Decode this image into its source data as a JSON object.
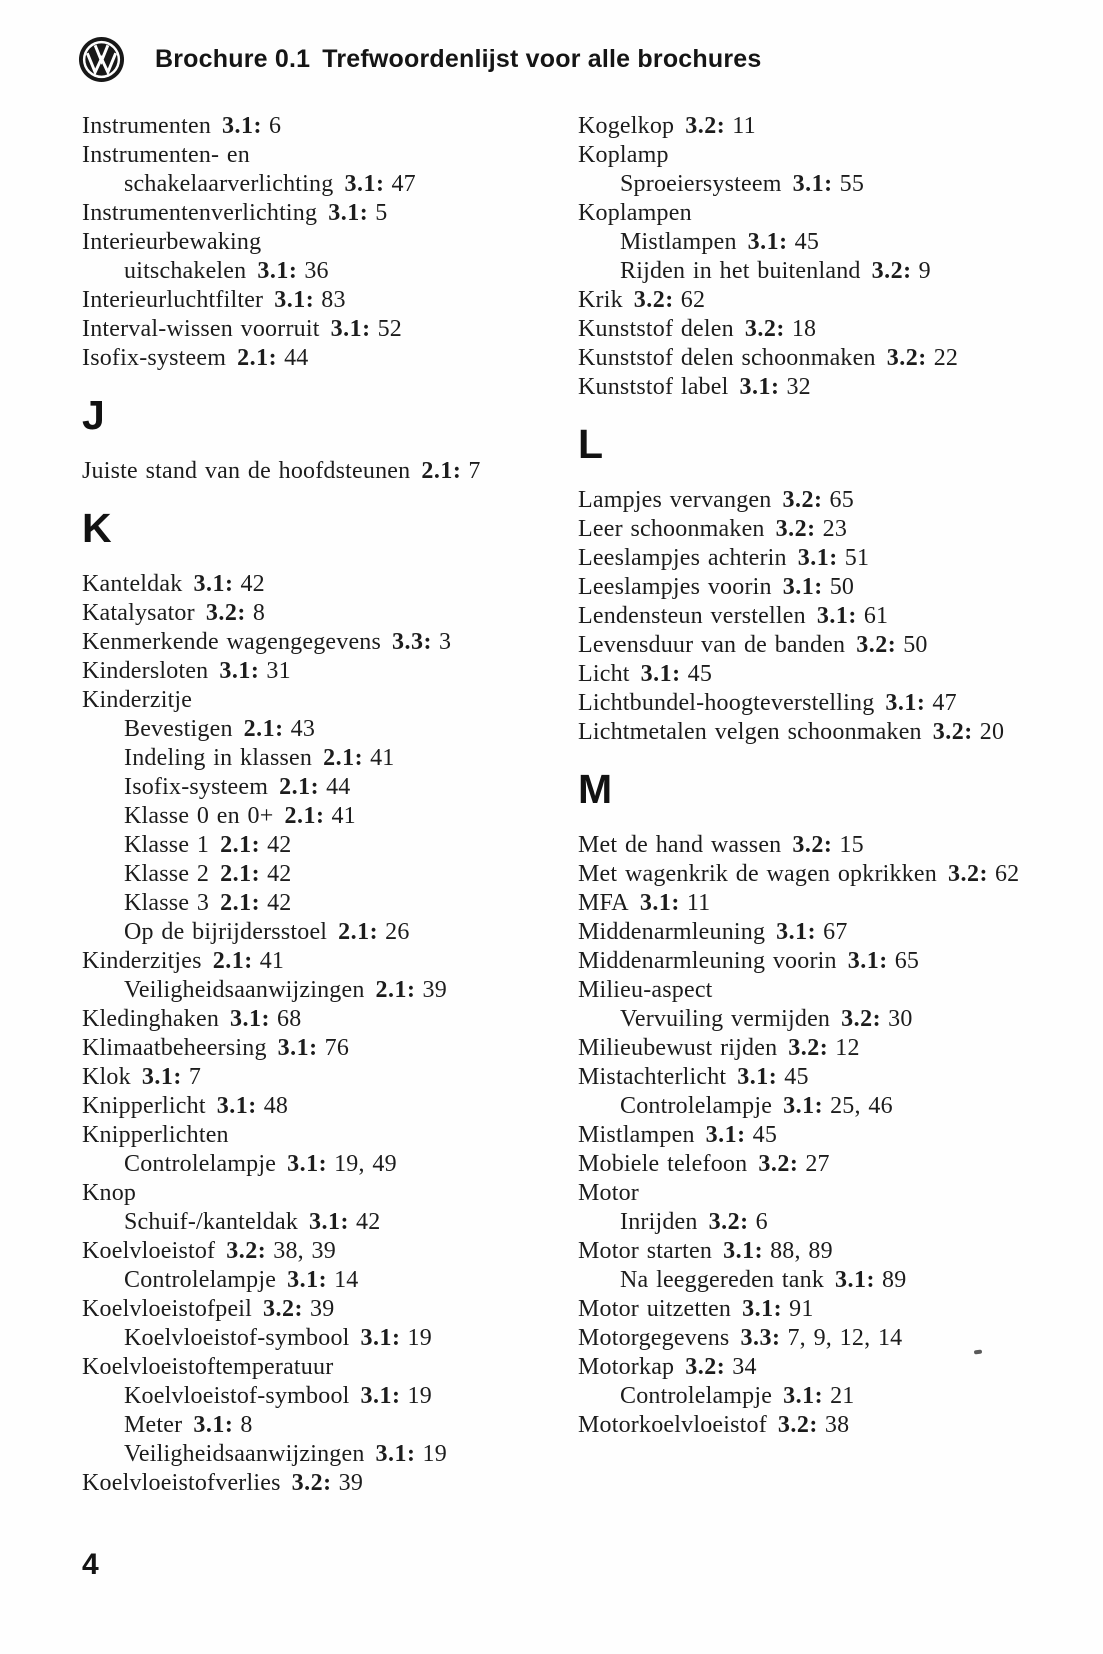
{
  "header": {
    "brochure": "Brochure 0.1",
    "title": "Trefwoordenlijst voor alle brochures",
    "logo": "vw-logo"
  },
  "footer": {
    "page_number": "4"
  },
  "columns": {
    "left": [
      {
        "label": "Instrumenten",
        "ref": "3.1:",
        "pages": "6"
      },
      {
        "label": "Instrumenten- en"
      },
      {
        "label": "schakelaarverlichting",
        "ref": "3.1:",
        "pages": "47",
        "indent": 1
      },
      {
        "label": "Instrumentenverlichting",
        "ref": "3.1:",
        "pages": "5"
      },
      {
        "label": "Interieurbewaking"
      },
      {
        "label": "uitschakelen",
        "ref": "3.1:",
        "pages": "36",
        "indent": 1
      },
      {
        "label": "Interieurluchtfilter",
        "ref": "3.1:",
        "pages": "83"
      },
      {
        "label": "Interval-wissen voorruit",
        "ref": "3.1:",
        "pages": "52"
      },
      {
        "label": "Isofix-systeem",
        "ref": "2.1:",
        "pages": "44"
      },
      {
        "type": "section",
        "label": "J"
      },
      {
        "label": "Juiste stand van de hoofdsteunen",
        "ref": "2.1:",
        "pages": "7"
      },
      {
        "type": "section",
        "label": "K"
      },
      {
        "label": "Kanteldak",
        "ref": "3.1:",
        "pages": "42"
      },
      {
        "label": "Katalysator",
        "ref": "3.2:",
        "pages": "8"
      },
      {
        "label": "Kenmerkende wagengegevens",
        "ref": "3.3:",
        "pages": "3"
      },
      {
        "label": "Kindersloten",
        "ref": "3.1:",
        "pages": "31"
      },
      {
        "label": "Kinderzitje"
      },
      {
        "label": "Bevestigen",
        "ref": "2.1:",
        "pages": "43",
        "indent": 1
      },
      {
        "label": "Indeling in klassen",
        "ref": "2.1:",
        "pages": "41",
        "indent": 1
      },
      {
        "label": "Isofix-systeem",
        "ref": "2.1:",
        "pages": "44",
        "indent": 1
      },
      {
        "label": "Klasse 0 en 0+",
        "ref": "2.1:",
        "pages": "41",
        "indent": 1
      },
      {
        "label": "Klasse 1",
        "ref": "2.1:",
        "pages": "42",
        "indent": 1
      },
      {
        "label": "Klasse 2",
        "ref": "2.1:",
        "pages": "42",
        "indent": 1
      },
      {
        "label": "Klasse 3",
        "ref": "2.1:",
        "pages": "42",
        "indent": 1
      },
      {
        "label": "Op de bijrijdersstoel",
        "ref": "2.1:",
        "pages": "26",
        "indent": 1
      },
      {
        "label": "Kinderzitjes",
        "ref": "2.1:",
        "pages": "41"
      },
      {
        "label": "Veiligheidsaanwijzingen",
        "ref": "2.1:",
        "pages": "39",
        "indent": 1
      },
      {
        "label": "Kledinghaken",
        "ref": "3.1:",
        "pages": "68"
      },
      {
        "label": "Klimaatbeheersing",
        "ref": "3.1:",
        "pages": "76"
      },
      {
        "label": "Klok",
        "ref": "3.1:",
        "pages": "7"
      },
      {
        "label": "Knipperlicht",
        "ref": "3.1:",
        "pages": "48"
      },
      {
        "label": "Knipperlichten"
      },
      {
        "label": "Controlelampje",
        "ref": "3.1:",
        "pages": "19, 49",
        "indent": 1
      },
      {
        "label": "Knop"
      },
      {
        "label": "Schuif-/kanteldak",
        "ref": "3.1:",
        "pages": "42",
        "indent": 1
      },
      {
        "label": "Koelvloeistof",
        "ref": "3.2:",
        "pages": "38, 39"
      },
      {
        "label": "Controlelampje",
        "ref": "3.1:",
        "pages": "14",
        "indent": 1
      },
      {
        "label": "Koelvloeistofpeil",
        "ref": "3.2:",
        "pages": "39"
      },
      {
        "label": "Koelvloeistof-symbool",
        "ref": "3.1:",
        "pages": "19",
        "indent": 1
      },
      {
        "label": "Koelvloeistoftemperatuur"
      },
      {
        "label": "Koelvloeistof-symbool",
        "ref": "3.1:",
        "pages": "19",
        "indent": 1
      },
      {
        "label": "Meter",
        "ref": "3.1:",
        "pages": "8",
        "indent": 1
      },
      {
        "label": "Veiligheidsaanwijzingen",
        "ref": "3.1:",
        "pages": "19",
        "indent": 1
      },
      {
        "label": "Koelvloeistofverlies",
        "ref": "3.2:",
        "pages": "39"
      }
    ],
    "right": [
      {
        "label": "Kogelkop",
        "ref": "3.2:",
        "pages": "11"
      },
      {
        "label": "Koplamp"
      },
      {
        "label": "Sproeiersysteem",
        "ref": "3.1:",
        "pages": "55",
        "indent": 1
      },
      {
        "label": "Koplampen"
      },
      {
        "label": "Mistlampen",
        "ref": "3.1:",
        "pages": "45",
        "indent": 1
      },
      {
        "label": "Rijden in het buitenland",
        "ref": "3.2:",
        "pages": "9",
        "indent": 1
      },
      {
        "label": "Krik",
        "ref": "3.2:",
        "pages": "62"
      },
      {
        "label": "Kunststof delen",
        "ref": "3.2:",
        "pages": "18"
      },
      {
        "label": "Kunststof delen schoonmaken",
        "ref": "3.2:",
        "pages": "22"
      },
      {
        "label": "Kunststof label",
        "ref": "3.1:",
        "pages": "32"
      },
      {
        "type": "section",
        "label": "L"
      },
      {
        "label": "Lampjes vervangen",
        "ref": "3.2:",
        "pages": "65"
      },
      {
        "label": "Leer schoonmaken",
        "ref": "3.2:",
        "pages": "23"
      },
      {
        "label": "Leeslampjes achterin",
        "ref": "3.1:",
        "pages": "51"
      },
      {
        "label": "Leeslampjes voorin",
        "ref": "3.1:",
        "pages": "50"
      },
      {
        "label": "Lendensteun verstellen",
        "ref": "3.1:",
        "pages": "61"
      },
      {
        "label": "Levensduur van de banden",
        "ref": "3.2:",
        "pages": "50"
      },
      {
        "label": "Licht",
        "ref": "3.1:",
        "pages": "45"
      },
      {
        "label": "Lichtbundel-hoogteverstelling",
        "ref": "3.1:",
        "pages": "47"
      },
      {
        "label": "Lichtmetalen velgen schoonmaken",
        "ref": "3.2:",
        "pages": "20"
      },
      {
        "type": "section",
        "label": "M"
      },
      {
        "label": "Met de hand wassen",
        "ref": "3.2:",
        "pages": "15"
      },
      {
        "label": "Met wagenkrik de wagen opkrikken",
        "ref": "3.2:",
        "pages": "62"
      },
      {
        "label": "MFA",
        "ref": "3.1:",
        "pages": "11"
      },
      {
        "label": "Middenarmleuning",
        "ref": "3.1:",
        "pages": "67"
      },
      {
        "label": "Middenarmleuning voorin",
        "ref": "3.1:",
        "pages": "65"
      },
      {
        "label": "Milieu-aspect"
      },
      {
        "label": "Vervuiling vermijden",
        "ref": "3.2:",
        "pages": "30",
        "indent": 1
      },
      {
        "label": "Milieubewust rijden",
        "ref": "3.2:",
        "pages": "12"
      },
      {
        "label": "Mistachterlicht",
        "ref": "3.1:",
        "pages": "45"
      },
      {
        "label": "Controlelampje",
        "ref": "3.1:",
        "pages": "25, 46",
        "indent": 1
      },
      {
        "label": "Mistlampen",
        "ref": "3.1:",
        "pages": "45"
      },
      {
        "label": "Mobiele telefoon",
        "ref": "3.2:",
        "pages": "27"
      },
      {
        "label": "Motor"
      },
      {
        "label": "Inrijden",
        "ref": "3.2:",
        "pages": "6",
        "indent": 1
      },
      {
        "label": "Motor starten",
        "ref": "3.1:",
        "pages": "88, 89"
      },
      {
        "label": "Na leeggereden tank",
        "ref": "3.1:",
        "pages": "89",
        "indent": 1
      },
      {
        "label": "Motor uitzetten",
        "ref": "3.1:",
        "pages": "91"
      },
      {
        "label": "Motorgegevens",
        "ref": "3.3:",
        "pages": "7, 9, 12, 14"
      },
      {
        "label": "Motorkap",
        "ref": "3.2:",
        "pages": "34"
      },
      {
        "label": "Controlelampje",
        "ref": "3.1:",
        "pages": "21",
        "indent": 1
      },
      {
        "label": "Motorkoelvloeistof",
        "ref": "3.2:",
        "pages": "38"
      }
    ]
  }
}
